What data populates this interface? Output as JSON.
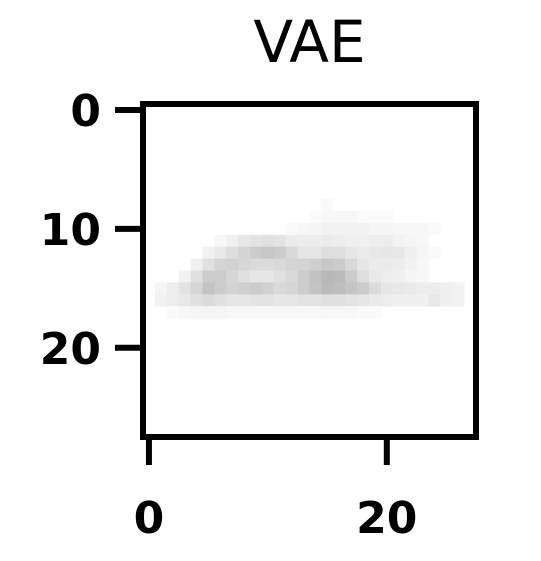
{
  "chart_data": {
    "type": "heatmap",
    "title": "VAE",
    "xlabel": "",
    "ylabel": "",
    "colormap": "gray_r",
    "xlim": [
      -0.5,
      27.5
    ],
    "ylim": [
      27.5,
      -0.5
    ],
    "x_ticks": [
      0,
      20
    ],
    "y_ticks": [
      0,
      10,
      20
    ],
    "x_tick_labels": [
      "0",
      "20"
    ],
    "y_tick_labels": [
      "0",
      "10",
      "20"
    ],
    "grid": false,
    "rows": 28,
    "cols": 28,
    "cells": [
      [
        8,
        15,
        0.02
      ],
      [
        9,
        14,
        0.02
      ],
      [
        9,
        15,
        0.03
      ],
      [
        9,
        16,
        0.03
      ],
      [
        9,
        17,
        0.03
      ],
      [
        9,
        18,
        0.02
      ],
      [
        9,
        19,
        0.02
      ],
      [
        9,
        20,
        0.02
      ],
      [
        10,
        12,
        0.02
      ],
      [
        10,
        13,
        0.03
      ],
      [
        10,
        14,
        0.04
      ],
      [
        10,
        15,
        0.05
      ],
      [
        10,
        16,
        0.05
      ],
      [
        10,
        17,
        0.05
      ],
      [
        10,
        18,
        0.05
      ],
      [
        10,
        19,
        0.04
      ],
      [
        10,
        20,
        0.04
      ],
      [
        10,
        21,
        0.03
      ],
      [
        10,
        22,
        0.03
      ],
      [
        10,
        23,
        0.03
      ],
      [
        10,
        24,
        0.02
      ],
      [
        11,
        6,
        0.03
      ],
      [
        11,
        7,
        0.06
      ],
      [
        11,
        8,
        0.09
      ],
      [
        11,
        9,
        0.11
      ],
      [
        11,
        10,
        0.12
      ],
      [
        11,
        11,
        0.11
      ],
      [
        11,
        12,
        0.08
      ],
      [
        11,
        13,
        0.07
      ],
      [
        11,
        14,
        0.07
      ],
      [
        11,
        15,
        0.08
      ],
      [
        11,
        16,
        0.07
      ],
      [
        11,
        17,
        0.06
      ],
      [
        11,
        18,
        0.06
      ],
      [
        11,
        19,
        0.07
      ],
      [
        11,
        20,
        0.07
      ],
      [
        11,
        21,
        0.05
      ],
      [
        11,
        22,
        0.04
      ],
      [
        11,
        23,
        0.03
      ],
      [
        12,
        5,
        0.05
      ],
      [
        12,
        6,
        0.09
      ],
      [
        12,
        7,
        0.13
      ],
      [
        12,
        8,
        0.17
      ],
      [
        12,
        9,
        0.2
      ],
      [
        12,
        10,
        0.22
      ],
      [
        12,
        11,
        0.2
      ],
      [
        12,
        12,
        0.15
      ],
      [
        12,
        13,
        0.1
      ],
      [
        12,
        14,
        0.1
      ],
      [
        12,
        15,
        0.13
      ],
      [
        12,
        16,
        0.13
      ],
      [
        12,
        17,
        0.1
      ],
      [
        12,
        18,
        0.08
      ],
      [
        12,
        19,
        0.09
      ],
      [
        12,
        20,
        0.1
      ],
      [
        12,
        21,
        0.09
      ],
      [
        12,
        22,
        0.06
      ],
      [
        12,
        23,
        0.04
      ],
      [
        12,
        24,
        0.02
      ],
      [
        13,
        4,
        0.06
      ],
      [
        13,
        5,
        0.12
      ],
      [
        13,
        6,
        0.17
      ],
      [
        13,
        7,
        0.18
      ],
      [
        13,
        8,
        0.16
      ],
      [
        13,
        9,
        0.14
      ],
      [
        13,
        10,
        0.14
      ],
      [
        13,
        11,
        0.15
      ],
      [
        13,
        12,
        0.17
      ],
      [
        13,
        13,
        0.17
      ],
      [
        13,
        14,
        0.19
      ],
      [
        13,
        15,
        0.22
      ],
      [
        13,
        16,
        0.2
      ],
      [
        13,
        17,
        0.15
      ],
      [
        13,
        18,
        0.1
      ],
      [
        13,
        19,
        0.08
      ],
      [
        13,
        20,
        0.08
      ],
      [
        13,
        21,
        0.07
      ],
      [
        13,
        22,
        0.05
      ],
      [
        13,
        23,
        0.03
      ],
      [
        14,
        3,
        0.05
      ],
      [
        14,
        4,
        0.12
      ],
      [
        14,
        5,
        0.2
      ],
      [
        14,
        6,
        0.2
      ],
      [
        14,
        7,
        0.16
      ],
      [
        14,
        8,
        0.12
      ],
      [
        14,
        9,
        0.1
      ],
      [
        14,
        10,
        0.1
      ],
      [
        14,
        11,
        0.12
      ],
      [
        14,
        12,
        0.15
      ],
      [
        14,
        13,
        0.2
      ],
      [
        14,
        14,
        0.24
      ],
      [
        14,
        15,
        0.28
      ],
      [
        14,
        16,
        0.27
      ],
      [
        14,
        17,
        0.2
      ],
      [
        14,
        18,
        0.13
      ],
      [
        14,
        19,
        0.09
      ],
      [
        14,
        20,
        0.07
      ],
      [
        14,
        21,
        0.06
      ],
      [
        14,
        22,
        0.04
      ],
      [
        14,
        23,
        0.03
      ],
      [
        15,
        1,
        0.04
      ],
      [
        15,
        2,
        0.07
      ],
      [
        15,
        3,
        0.11
      ],
      [
        15,
        4,
        0.16
      ],
      [
        15,
        5,
        0.23
      ],
      [
        15,
        6,
        0.2
      ],
      [
        15,
        7,
        0.17
      ],
      [
        15,
        8,
        0.19
      ],
      [
        15,
        9,
        0.2
      ],
      [
        15,
        10,
        0.18
      ],
      [
        15,
        11,
        0.15
      ],
      [
        15,
        12,
        0.16
      ],
      [
        15,
        13,
        0.2
      ],
      [
        15,
        14,
        0.23
      ],
      [
        15,
        15,
        0.27
      ],
      [
        15,
        16,
        0.26
      ],
      [
        15,
        17,
        0.23
      ],
      [
        15,
        18,
        0.2
      ],
      [
        15,
        19,
        0.14
      ],
      [
        15,
        20,
        0.1
      ],
      [
        15,
        21,
        0.09
      ],
      [
        15,
        22,
        0.08
      ],
      [
        15,
        23,
        0.07
      ],
      [
        15,
        24,
        0.07
      ],
      [
        15,
        25,
        0.06
      ],
      [
        15,
        26,
        0.05
      ],
      [
        16,
        1,
        0.05
      ],
      [
        16,
        2,
        0.07
      ],
      [
        16,
        3,
        0.09
      ],
      [
        16,
        4,
        0.12
      ],
      [
        16,
        5,
        0.14
      ],
      [
        16,
        6,
        0.12
      ],
      [
        16,
        7,
        0.1
      ],
      [
        16,
        8,
        0.1
      ],
      [
        16,
        9,
        0.11
      ],
      [
        16,
        10,
        0.11
      ],
      [
        16,
        11,
        0.1
      ],
      [
        16,
        12,
        0.1
      ],
      [
        16,
        13,
        0.11
      ],
      [
        16,
        14,
        0.11
      ],
      [
        16,
        15,
        0.12
      ],
      [
        16,
        16,
        0.12
      ],
      [
        16,
        17,
        0.11
      ],
      [
        16,
        18,
        0.1
      ],
      [
        16,
        19,
        0.08
      ],
      [
        16,
        20,
        0.07
      ],
      [
        16,
        21,
        0.06
      ],
      [
        16,
        22,
        0.06
      ],
      [
        16,
        23,
        0.06
      ],
      [
        16,
        24,
        0.09
      ],
      [
        16,
        25,
        0.06
      ],
      [
        16,
        26,
        0.05
      ],
      [
        17,
        2,
        0.02
      ],
      [
        17,
        3,
        0.03
      ],
      [
        17,
        4,
        0.04
      ],
      [
        17,
        5,
        0.04
      ],
      [
        17,
        6,
        0.04
      ],
      [
        17,
        7,
        0.03
      ],
      [
        17,
        8,
        0.03
      ],
      [
        17,
        9,
        0.03
      ],
      [
        17,
        10,
        0.03
      ],
      [
        17,
        11,
        0.03
      ],
      [
        17,
        12,
        0.03
      ],
      [
        17,
        13,
        0.03
      ],
      [
        17,
        14,
        0.03
      ],
      [
        17,
        15,
        0.03
      ],
      [
        17,
        16,
        0.03
      ],
      [
        17,
        17,
        0.03
      ],
      [
        17,
        18,
        0.02
      ],
      [
        17,
        19,
        0.02
      ]
    ]
  }
}
